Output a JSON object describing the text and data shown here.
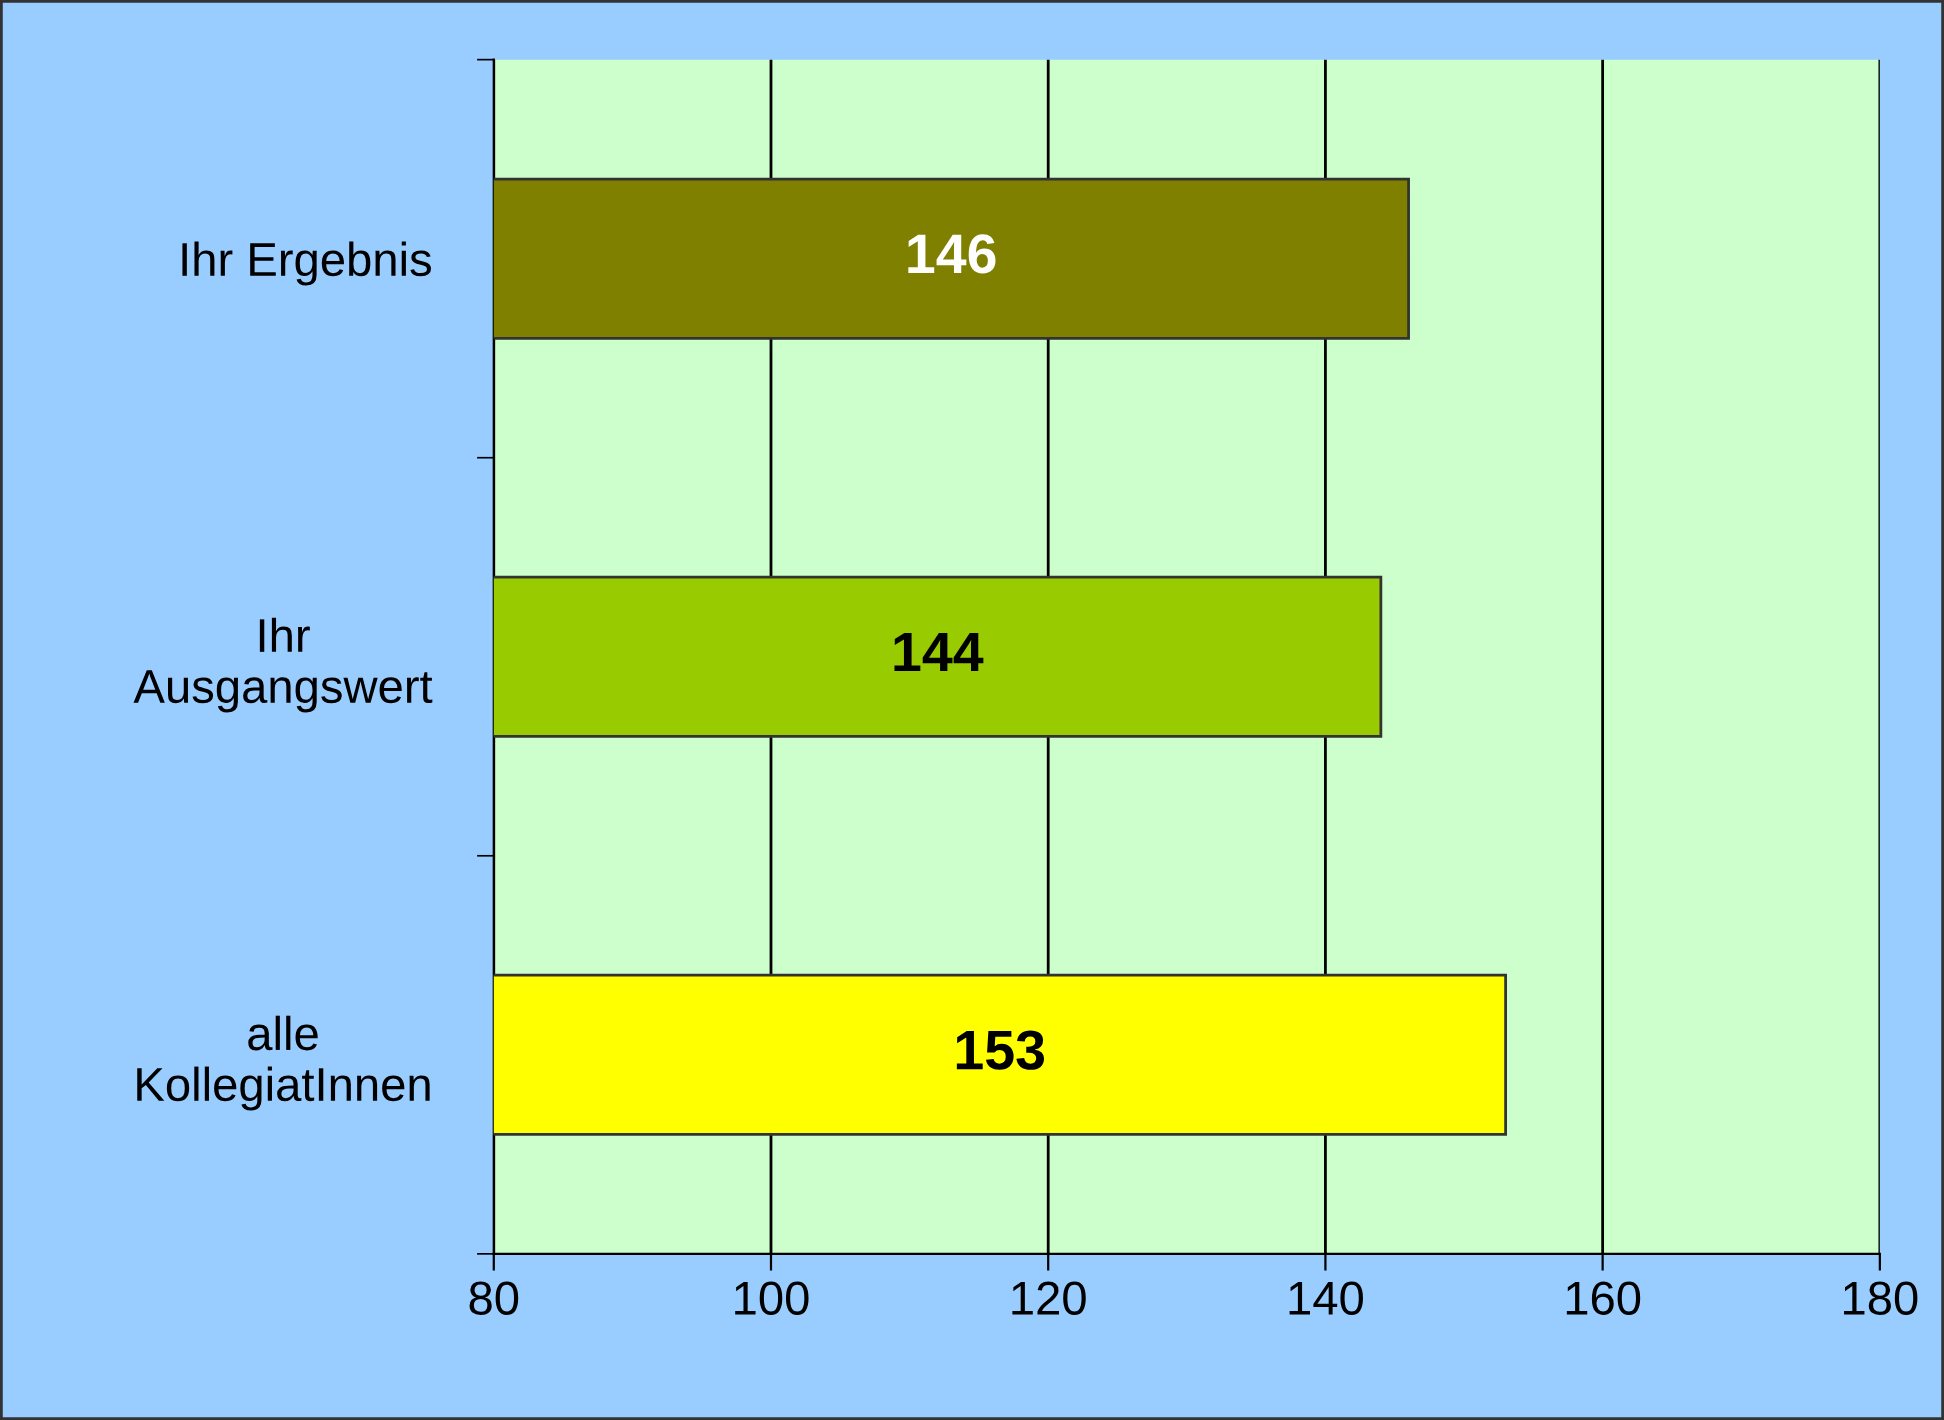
{
  "chart_data": {
    "type": "bar",
    "orientation": "horizontal",
    "categories": [
      "Ihr Ergebnis",
      "Ihr\nAusgangswert",
      "alle\nKollegiatInnen"
    ],
    "values": [
      146,
      144,
      153
    ],
    "colors": [
      "#808000",
      "#99cc00",
      "#ffff00"
    ],
    "xlim": [
      80,
      180
    ],
    "xticks": [
      80,
      100,
      120,
      140,
      160,
      180
    ],
    "grid": "x",
    "data_labels": true
  }
}
